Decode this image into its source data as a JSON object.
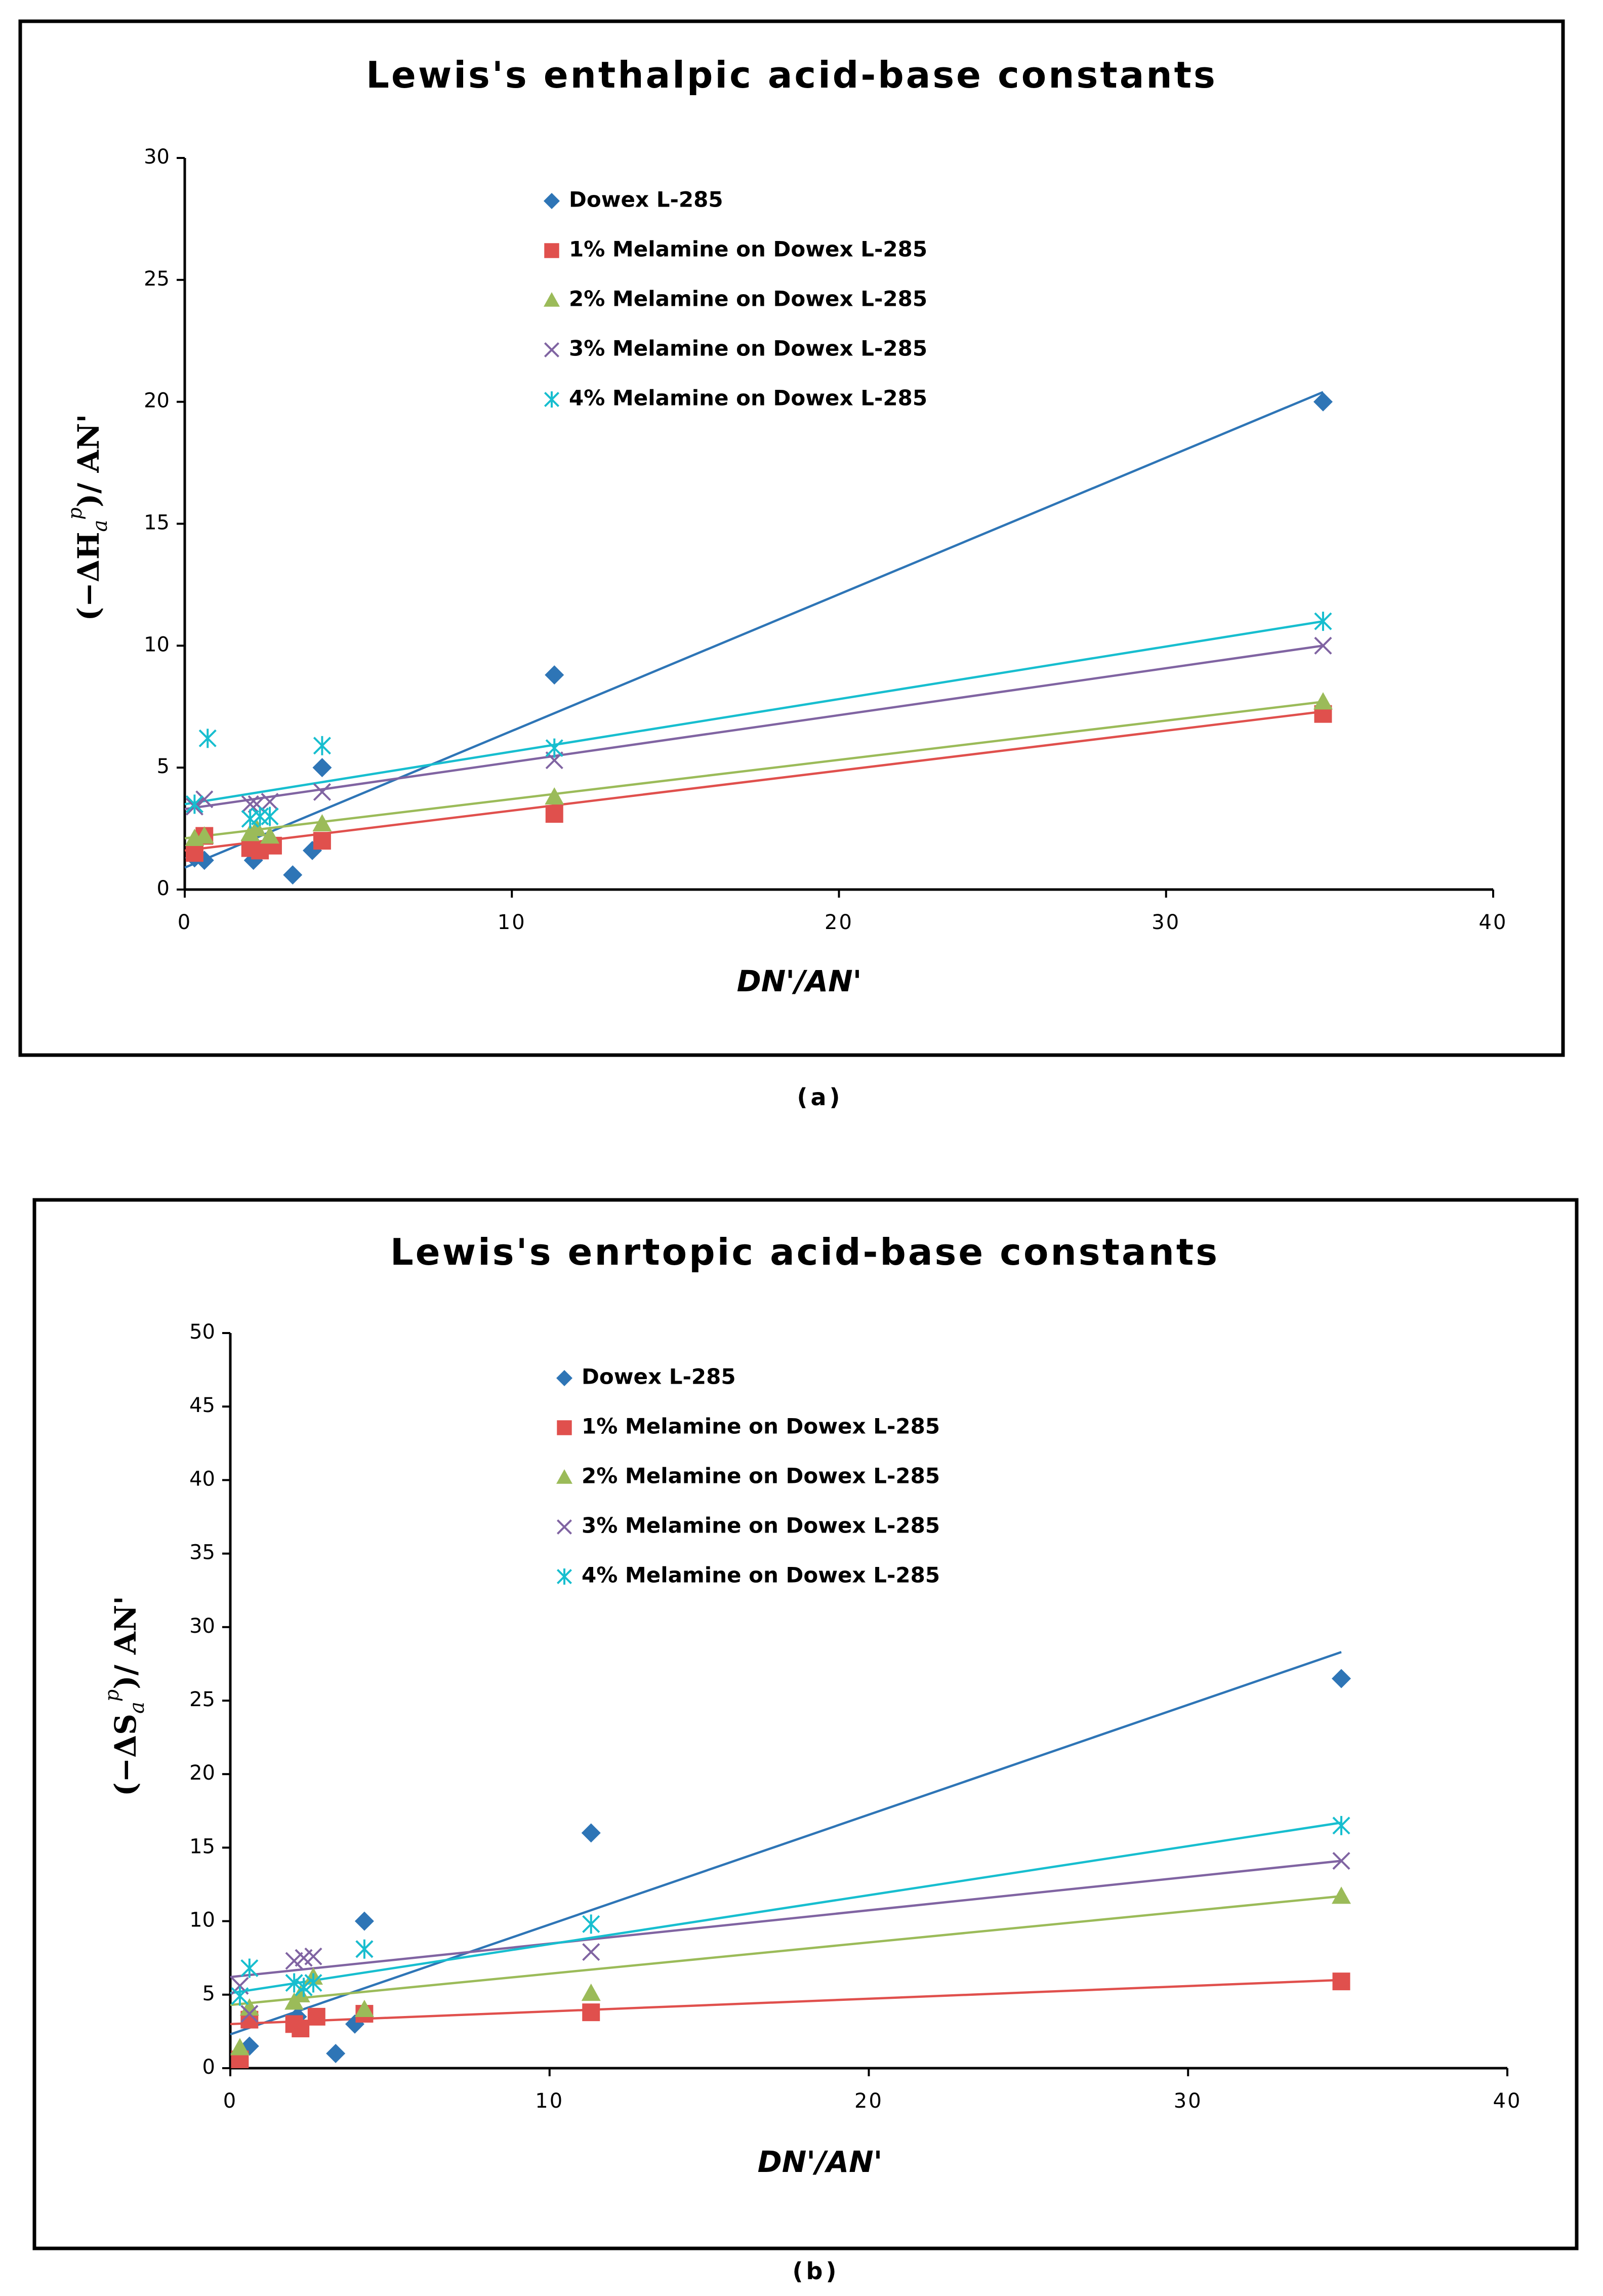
{
  "chart_data": [
    {
      "type": "scatter",
      "panel": "a",
      "title": "Lewis's enthalpic acid-base constants",
      "caption": "(a)",
      "xlabel": "DN'/AN'",
      "ylabel": {
        "open": "(−ΔH",
        "sub": "a",
        "sup": "p",
        "close": ")/ AN'"
      },
      "xlim": [
        0,
        40
      ],
      "ylim": [
        0,
        30
      ],
      "xticks": [
        0,
        10,
        20,
        30,
        40
      ],
      "yticks": [
        0,
        5,
        10,
        15,
        20,
        25,
        30
      ],
      "legend_position": "upper-left",
      "series": [
        {
          "name": "Dowex L-285",
          "marker": "diamond",
          "color": "#2e75b6",
          "x": [
            0.3,
            0.6,
            2.1,
            3.3,
            3.9,
            4.2,
            11.3,
            34.8
          ],
          "y": [
            1.3,
            1.2,
            1.2,
            0.6,
            1.6,
            5.0,
            8.8,
            20.0
          ],
          "trend": [
            [
              0,
              0.9
            ],
            [
              34.8,
              20.4
            ]
          ]
        },
        {
          "name": "1% Melamine on Dowex L-285",
          "marker": "square",
          "color": "#e0504d",
          "x": [
            0.3,
            0.6,
            2.0,
            2.3,
            2.7,
            4.2,
            11.3,
            34.8
          ],
          "y": [
            1.5,
            2.2,
            1.7,
            1.6,
            1.8,
            2.0,
            3.1,
            7.2
          ],
          "trend": [
            [
              0,
              1.6
            ],
            [
              34.8,
              7.3
            ]
          ]
        },
        {
          "name": "2% Melamine on Dowex L-285",
          "marker": "triangle",
          "color": "#9bbb59",
          "x": [
            0.3,
            0.6,
            2.0,
            2.2,
            2.6,
            4.2,
            11.3,
            34.8
          ],
          "y": [
            2.1,
            2.2,
            2.3,
            2.5,
            2.2,
            2.7,
            3.8,
            7.7
          ],
          "trend": [
            [
              0,
              2.1
            ],
            [
              34.8,
              7.7
            ]
          ]
        },
        {
          "name": "3% Melamine on Dowex L-285",
          "marker": "x",
          "color": "#8064a2",
          "x": [
            0.3,
            0.6,
            2.0,
            2.2,
            2.6,
            4.2,
            11.3,
            34.8
          ],
          "y": [
            3.4,
            3.7,
            3.5,
            3.5,
            3.6,
            4.0,
            5.3,
            10.0
          ],
          "trend": [
            [
              0,
              3.3
            ],
            [
              34.8,
              10.0
            ]
          ]
        },
        {
          "name": "4% Melamine on Dowex L-285",
          "marker": "asterisk",
          "color": "#17becf",
          "x": [
            0.3,
            0.7,
            2.0,
            2.3,
            2.6,
            4.2,
            11.3,
            34.8
          ],
          "y": [
            3.5,
            6.2,
            2.9,
            3.0,
            3.0,
            5.9,
            5.8,
            11.0
          ],
          "trend": [
            [
              0,
              3.5
            ],
            [
              34.8,
              11.0
            ]
          ]
        }
      ]
    },
    {
      "type": "scatter",
      "panel": "b",
      "title": "Lewis's enrtopic acid-base constants",
      "caption": "(b)",
      "xlabel": "DN'/AN'",
      "ylabel": {
        "open": "(−ΔS",
        "sub": "a",
        "sup": "p",
        "close": ")/ AN'"
      },
      "xlim": [
        0,
        40
      ],
      "ylim": [
        0,
        50
      ],
      "xticks": [
        0,
        10,
        20,
        30,
        40
      ],
      "yticks": [
        0,
        5,
        10,
        15,
        20,
        25,
        30,
        35,
        40,
        45,
        50
      ],
      "legend_position": "upper-left",
      "series": [
        {
          "name": "Dowex L-285",
          "marker": "diamond",
          "color": "#2e75b6",
          "x": [
            0.3,
            0.6,
            2.1,
            3.3,
            3.9,
            4.2,
            11.3,
            34.8
          ],
          "y": [
            1.0,
            1.5,
            3.5,
            1.0,
            3.0,
            10.0,
            16.0,
            26.5
          ],
          "trend": [
            [
              0,
              2.3
            ],
            [
              34.8,
              28.3
            ]
          ]
        },
        {
          "name": "1% Melamine on Dowex L-285",
          "marker": "square",
          "color": "#e0504d",
          "x": [
            0.3,
            0.6,
            2.0,
            2.2,
            2.7,
            4.2,
            11.3,
            34.8
          ],
          "y": [
            0.6,
            3.3,
            3.0,
            2.7,
            3.5,
            3.7,
            3.8,
            5.9
          ],
          "trend": [
            [
              0,
              3.0
            ],
            [
              34.8,
              6.0
            ]
          ]
        },
        {
          "name": "2% Melamine on Dowex L-285",
          "marker": "triangle",
          "color": "#9bbb59",
          "x": [
            0.3,
            0.6,
            2.0,
            2.2,
            2.6,
            4.2,
            11.3,
            34.8
          ],
          "y": [
            1.4,
            4.1,
            4.5,
            5.0,
            6.2,
            4.0,
            5.1,
            11.7
          ],
          "trend": [
            [
              0,
              4.3
            ],
            [
              34.8,
              11.7
            ]
          ]
        },
        {
          "name": "3% Melamine on Dowex L-285",
          "marker": "x",
          "color": "#8064a2",
          "x": [
            0.3,
            0.6,
            2.0,
            2.3,
            2.6,
            4.2,
            11.3,
            34.8
          ],
          "y": [
            5.6,
            3.7,
            7.3,
            7.5,
            7.6,
            8.1,
            7.9,
            14.1
          ],
          "trend": [
            [
              0,
              6.2
            ],
            [
              34.8,
              14.1
            ]
          ]
        },
        {
          "name": "4% Melamine on Dowex L-285",
          "marker": "asterisk",
          "color": "#17becf",
          "x": [
            0.3,
            0.6,
            2.0,
            2.3,
            2.6,
            4.2,
            11.3,
            34.8
          ],
          "y": [
            4.9,
            6.8,
            5.8,
            5.5,
            5.8,
            8.1,
            9.8,
            16.5
          ],
          "trend": [
            [
              0,
              5.1
            ],
            [
              34.8,
              16.7
            ]
          ]
        }
      ]
    }
  ]
}
